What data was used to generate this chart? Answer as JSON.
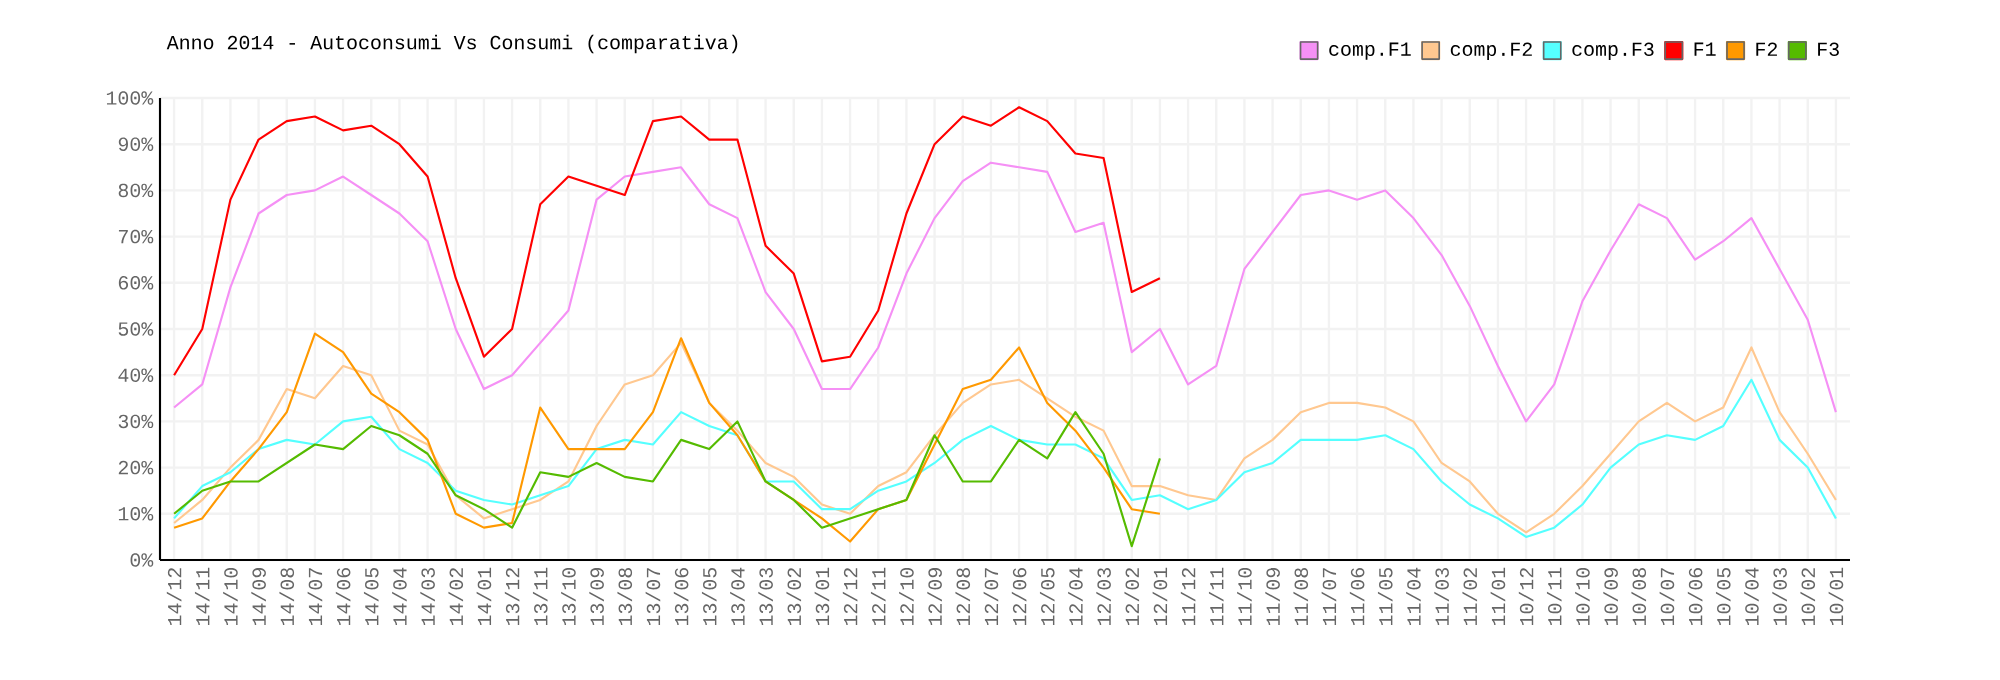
{
  "chart_data": {
    "type": "line",
    "title": "Anno 2014 - Autoconsumi Vs Consumi (comparativa)",
    "categories": [
      "14/12",
      "14/11",
      "14/10",
      "14/09",
      "14/08",
      "14/07",
      "14/06",
      "14/05",
      "14/04",
      "14/03",
      "14/02",
      "14/01",
      "13/12",
      "13/11",
      "13/10",
      "13/09",
      "13/08",
      "13/07",
      "13/06",
      "13/05",
      "13/04",
      "13/03",
      "13/02",
      "13/01",
      "12/12",
      "12/11",
      "12/10",
      "12/09",
      "12/08",
      "12/07",
      "12/06",
      "12/05",
      "12/04",
      "12/03",
      "12/02",
      "12/01",
      "11/12",
      "11/11",
      "11/10",
      "11/09",
      "11/08",
      "11/07",
      "11/06",
      "11/05",
      "11/04",
      "11/03",
      "11/02",
      "11/01",
      "10/12",
      "10/11",
      "10/10",
      "10/09",
      "10/08",
      "10/07",
      "10/06",
      "10/05",
      "10/04",
      "10/03",
      "10/02",
      "10/01"
    ],
    "series": [
      {
        "name": "comp.F1",
        "color": "#f590f5",
        "values": [
          33,
          38,
          59,
          75,
          79,
          80,
          83,
          79,
          75,
          69,
          50,
          37,
          40,
          47,
          54,
          78,
          83,
          84,
          85,
          77,
          74,
          58,
          50,
          37,
          37,
          46,
          62,
          74,
          82,
          86,
          85,
          84,
          71,
          73,
          45,
          50,
          38,
          42,
          63,
          71,
          79,
          80,
          78,
          80,
          74,
          66,
          55,
          42,
          30,
          38,
          56,
          67,
          77,
          74,
          65,
          69,
          74,
          63,
          52,
          32
        ]
      },
      {
        "name": "comp.F2",
        "color": "#ffc890",
        "values": [
          8,
          13,
          20,
          26,
          37,
          35,
          42,
          40,
          28,
          25,
          14,
          9,
          11,
          13,
          17,
          29,
          38,
          40,
          47,
          34,
          28,
          21,
          18,
          12,
          10,
          16,
          19,
          27,
          34,
          38,
          39,
          35,
          31,
          28,
          16,
          16,
          14,
          13,
          22,
          26,
          32,
          34,
          34,
          33,
          30,
          21,
          17,
          10,
          6,
          10,
          16,
          23,
          30,
          34,
          30,
          33,
          46,
          32,
          23,
          13
        ]
      },
      {
        "name": "comp.F3",
        "color": "#55ffff",
        "values": [
          9,
          16,
          19,
          24,
          26,
          25,
          30,
          31,
          24,
          21,
          15,
          13,
          12,
          14,
          16,
          24,
          26,
          25,
          32,
          29,
          27,
          17,
          17,
          11,
          11,
          15,
          17,
          21,
          26,
          29,
          26,
          25,
          25,
          22,
          13,
          14,
          11,
          13,
          19,
          21,
          26,
          26,
          26,
          27,
          24,
          17,
          12,
          9,
          5,
          7,
          12,
          20,
          25,
          27,
          26,
          29,
          39,
          26,
          20,
          9
        ]
      },
      {
        "name": "F1",
        "color": "#ff0000",
        "values": [
          40,
          50,
          78,
          91,
          95,
          96,
          93,
          94,
          90,
          83,
          61,
          44,
          50,
          77,
          83,
          81,
          79,
          95,
          96,
          91,
          91,
          68,
          62,
          43,
          44,
          54,
          75,
          90,
          96,
          94,
          98,
          95,
          88,
          87,
          58,
          61,
          null,
          null,
          null,
          null,
          null,
          null,
          null,
          null,
          null,
          null,
          null,
          null,
          null,
          null,
          null,
          null,
          null,
          null,
          null,
          null,
          null,
          null,
          null,
          null
        ]
      },
      {
        "name": "F2",
        "color": "#ff9900",
        "values": [
          7,
          9,
          17,
          24,
          32,
          49,
          45,
          36,
          32,
          26,
          10,
          7,
          8,
          33,
          24,
          24,
          24,
          32,
          48,
          34,
          27,
          17,
          13,
          9,
          4,
          11,
          13,
          25,
          37,
          39,
          46,
          34,
          28,
          20,
          11,
          10,
          null,
          null,
          null,
          null,
          null,
          null,
          null,
          null,
          null,
          null,
          null,
          null,
          null,
          null,
          null,
          null,
          null,
          null,
          null,
          null,
          null,
          null,
          null,
          null
        ]
      },
      {
        "name": "F3",
        "color": "#55bb00",
        "values": [
          10,
          15,
          17,
          17,
          21,
          25,
          24,
          29,
          27,
          23,
          14,
          11,
          7,
          19,
          18,
          21,
          18,
          17,
          26,
          24,
          30,
          17,
          13,
          7,
          9,
          11,
          13,
          27,
          17,
          17,
          26,
          22,
          32,
          23,
          3,
          22,
          null,
          null,
          null,
          null,
          null,
          null,
          null,
          null,
          null,
          null,
          null,
          null,
          null,
          null,
          null,
          null,
          null,
          null,
          null,
          null,
          null,
          null,
          null,
          null
        ]
      }
    ],
    "ylim": [
      0,
      100
    ],
    "yticks": [
      {
        "value": 0,
        "label": "0%"
      },
      {
        "value": 10,
        "label": "10%"
      },
      {
        "value": 20,
        "label": "20%"
      },
      {
        "value": 30,
        "label": "30%"
      },
      {
        "value": 40,
        "label": "40%"
      },
      {
        "value": 50,
        "label": "50%"
      },
      {
        "value": 60,
        "label": "60%"
      },
      {
        "value": 70,
        "label": "70%"
      },
      {
        "value": 80,
        "label": "80%"
      },
      {
        "value": 90,
        "label": "90%"
      },
      {
        "value": 100,
        "label": "100%"
      }
    ],
    "grid": true,
    "legend": "top right",
    "line_style": "solid"
  }
}
